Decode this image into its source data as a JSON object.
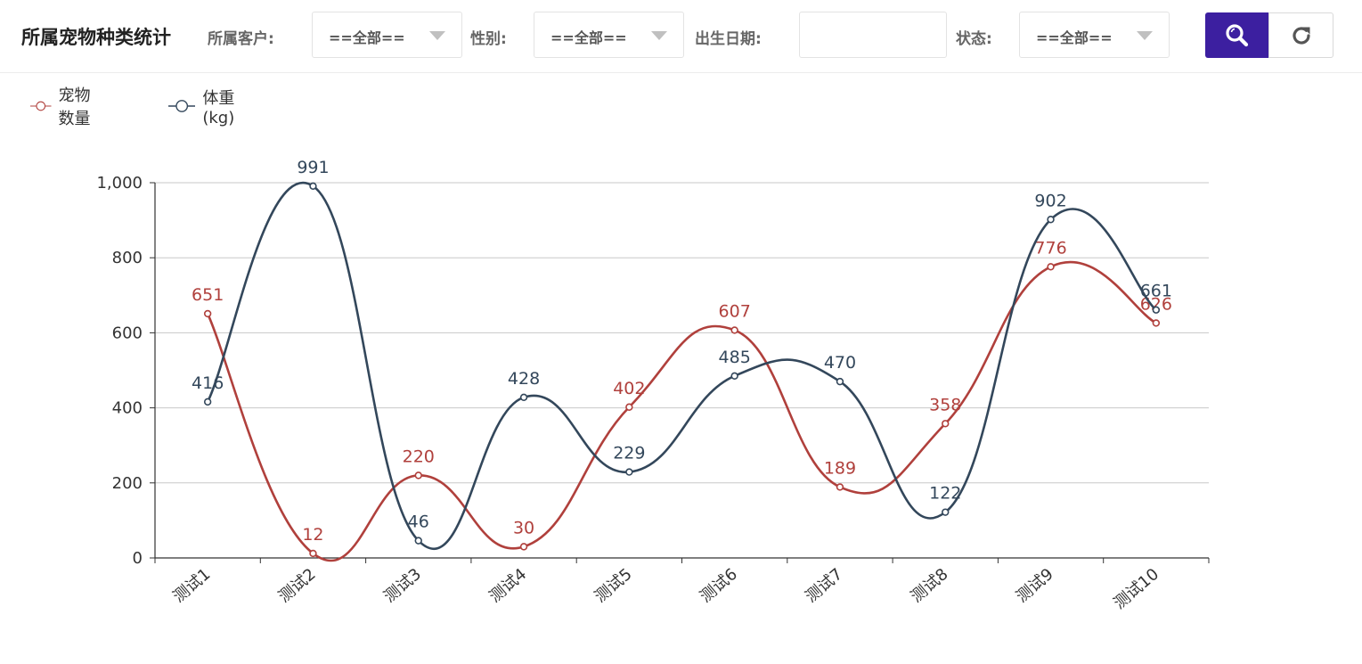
{
  "header": {
    "title": "所属宠物种类统计",
    "filters": {
      "customer_label": "所属客户:",
      "customer_value": "==全部==",
      "gender_label": "性别:",
      "gender_value": "==全部==",
      "birthdate_label": "出生日期:",
      "birthdate_value": "",
      "status_label": "状态:",
      "status_value": "==全部=="
    }
  },
  "icons": {
    "search": "search-icon",
    "reset": "refresh-icon"
  },
  "colors": {
    "accent": "#3c1fa0",
    "series_count": "#b0403c",
    "series_weight": "#33475b"
  },
  "chart_data": {
    "type": "line",
    "smooth": true,
    "categories": [
      "测试1",
      "测试2",
      "测试3",
      "测试4",
      "测试5",
      "测试6",
      "测试7",
      "测试8",
      "测试9",
      "测试10"
    ],
    "series": [
      {
        "name": "宠物数量",
        "color": "#b0403c",
        "values": [
          651,
          12,
          220,
          30,
          402,
          607,
          189,
          358,
          776,
          626
        ]
      },
      {
        "name": "体重(kg)",
        "color": "#33475b",
        "values": [
          416,
          991,
          46,
          428,
          229,
          485,
          470,
          122,
          902,
          661
        ]
      }
    ],
    "y_ticks": [
      "0",
      "200",
      "400",
      "600",
      "800",
      "1,000"
    ],
    "ylim": [
      0,
      1000
    ],
    "grid": true,
    "legend_position": "top-left",
    "data_labels": true
  }
}
